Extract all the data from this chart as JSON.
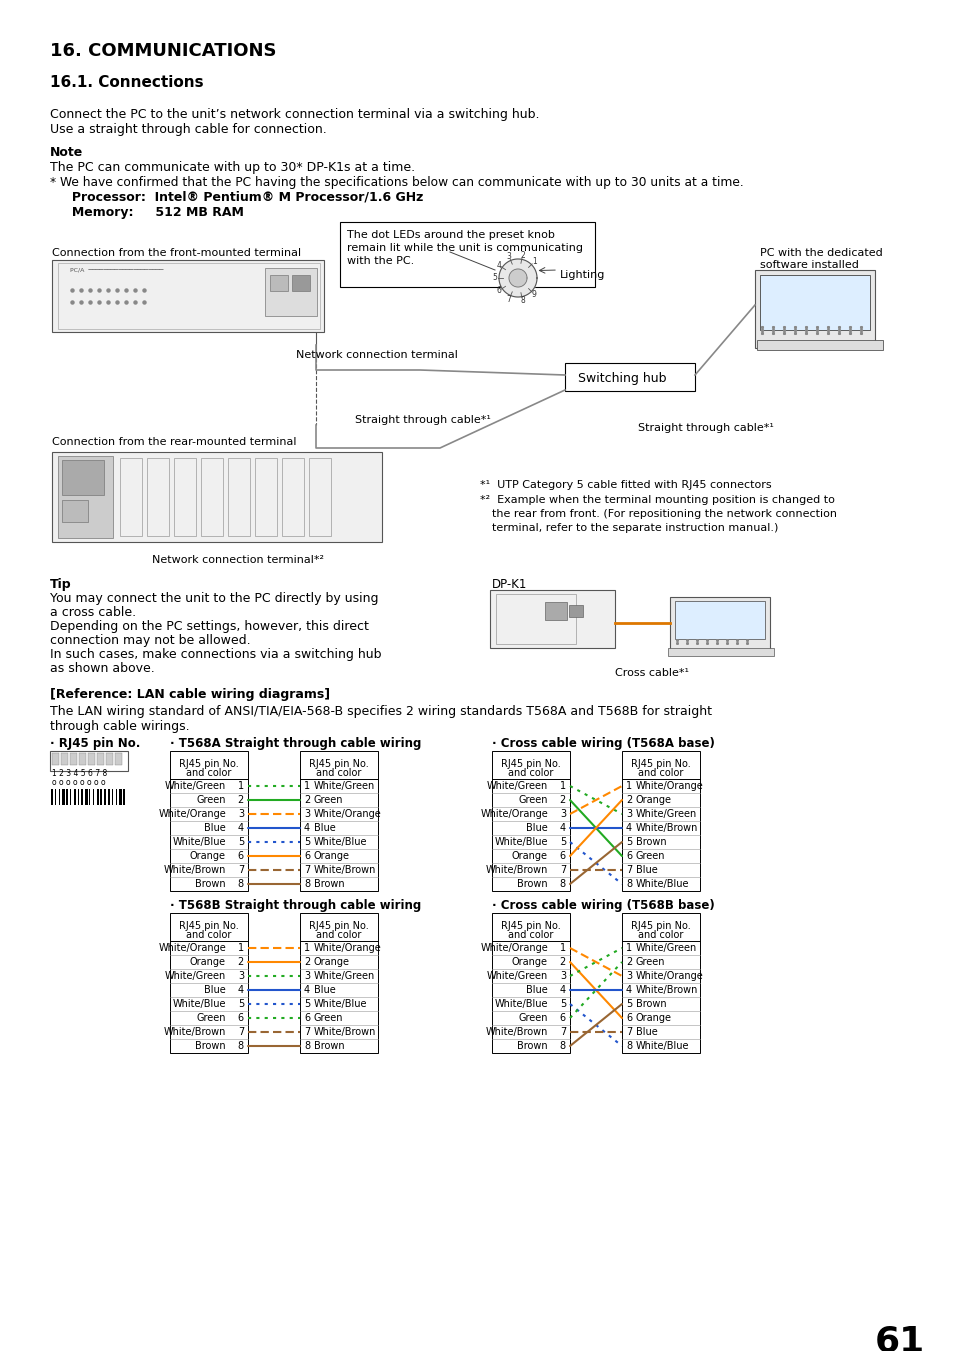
{
  "title": "16. COMMUNICATIONS",
  "subtitle": "16.1. Connections",
  "bg_color": "#ffffff",
  "text_color": "#000000",
  "page_number": "61",
  "body_text": [
    "Connect the PC to the unit’s network connection terminal via a switching hub.",
    "Use a straight through cable for connection."
  ],
  "note_title": "Note",
  "note_lines": [
    "The PC can communicate with up to 30* DP-K1s at a time.",
    "* We have confirmed that the PC having the specifications below can communicate with up to 30 units at a time.",
    "     Processor:  Intel® Pentium® M Processor/1.6 GHz",
    "     Memory:     512 MB RAM"
  ],
  "tip_title": "Tip",
  "tip_lines": [
    "You may connect the unit to the PC directly by using",
    "a cross cable.",
    "Depending on the PC settings, however, this direct",
    "connection may not be allowed.",
    "In such cases, make connections via a switching hub",
    "as shown above."
  ],
  "ref_title": "[Reference: LAN cable wiring diagrams]",
  "ref_body_line1": "The LAN wiring standard of ANSI/TIA/EIA-568-B specifies 2 wiring standards T568A and T568B for straight",
  "ref_body_line2": "through cable wirings.",
  "t568a_straight_left": [
    "White/Green",
    "Green",
    "White/Orange",
    "Blue",
    "White/Blue",
    "Orange",
    "White/Brown",
    "Brown"
  ],
  "t568a_straight_right": [
    "White/Green",
    "Green",
    "White/Orange",
    "Blue",
    "White/Blue",
    "Orange",
    "White/Brown",
    "Brown"
  ],
  "t568b_straight_left": [
    "White/Orange",
    "Orange",
    "White/Green",
    "Blue",
    "White/Blue",
    "Green",
    "White/Brown",
    "Brown"
  ],
  "t568b_straight_right": [
    "White/Orange",
    "Orange",
    "White/Green",
    "Blue",
    "White/Blue",
    "Green",
    "White/Brown",
    "Brown"
  ],
  "t568a_cross_left": [
    "White/Green",
    "Green",
    "White/Orange",
    "Blue",
    "White/Blue",
    "Orange",
    "White/Brown",
    "Brown"
  ],
  "t568a_cross_right": [
    "White/Orange",
    "Orange",
    "White/Green",
    "White/Brown",
    "Brown",
    "Green",
    "Blue",
    "White/Blue"
  ],
  "t568b_cross_left": [
    "White/Orange",
    "Orange",
    "White/Green",
    "Blue",
    "White/Blue",
    "Green",
    "White/Brown",
    "Brown"
  ],
  "t568b_cross_right": [
    "White/Green",
    "Green",
    "White/Orange",
    "White/Brown",
    "Brown",
    "Orange",
    "Blue",
    "White/Blue"
  ],
  "t568a_wire_colors": [
    "#22aa22",
    "#22aa22",
    "#ff8800",
    "#2255cc",
    "#2255cc",
    "#ff8800",
    "#996633",
    "#996633"
  ],
  "t568a_wire_styles": [
    "dotted",
    "solid",
    "dashed",
    "solid",
    "dotted",
    "solid",
    "dashed",
    "solid"
  ],
  "t568b_wire_colors": [
    "#ff8800",
    "#ff8800",
    "#22aa22",
    "#2255cc",
    "#2255cc",
    "#22aa22",
    "#996633",
    "#996633"
  ],
  "t568b_wire_styles": [
    "dashed",
    "solid",
    "dotted",
    "solid",
    "dotted",
    "dotted",
    "dashed",
    "solid"
  ],
  "cross_a_dest": [
    2,
    5,
    0,
    3,
    7,
    1,
    6,
    4
  ],
  "cross_b_dest": [
    2,
    5,
    0,
    3,
    7,
    1,
    6,
    4
  ]
}
